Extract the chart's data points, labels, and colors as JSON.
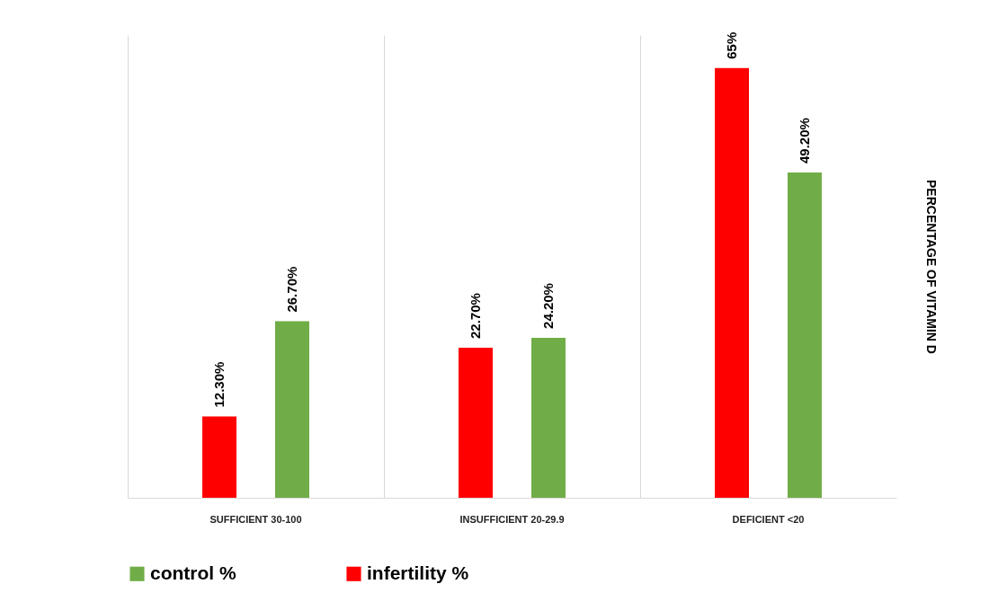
{
  "chart_data": {
    "type": "bar",
    "ylabel": "PERCENTAGE OF VITAMIN D",
    "categories": [
      "SUFFICIENT 30-100",
      "INSUFFICIENT 20-29.9",
      "DEFICIENT <20"
    ],
    "series": [
      {
        "name": "infertility %",
        "color": "#ff0000",
        "values": [
          12.3,
          22.7,
          65
        ],
        "value_labels": [
          "12.30%",
          "22.70%",
          "65%"
        ]
      },
      {
        "name": "control %",
        "color": "#70ad47",
        "values": [
          26.7,
          24.2,
          49.2
        ],
        "value_labels": [
          "26.70%",
          "24.20%",
          "49.20%"
        ]
      }
    ],
    "ylim": [
      0,
      70
    ],
    "grid": "x",
    "legend": "bottom"
  }
}
